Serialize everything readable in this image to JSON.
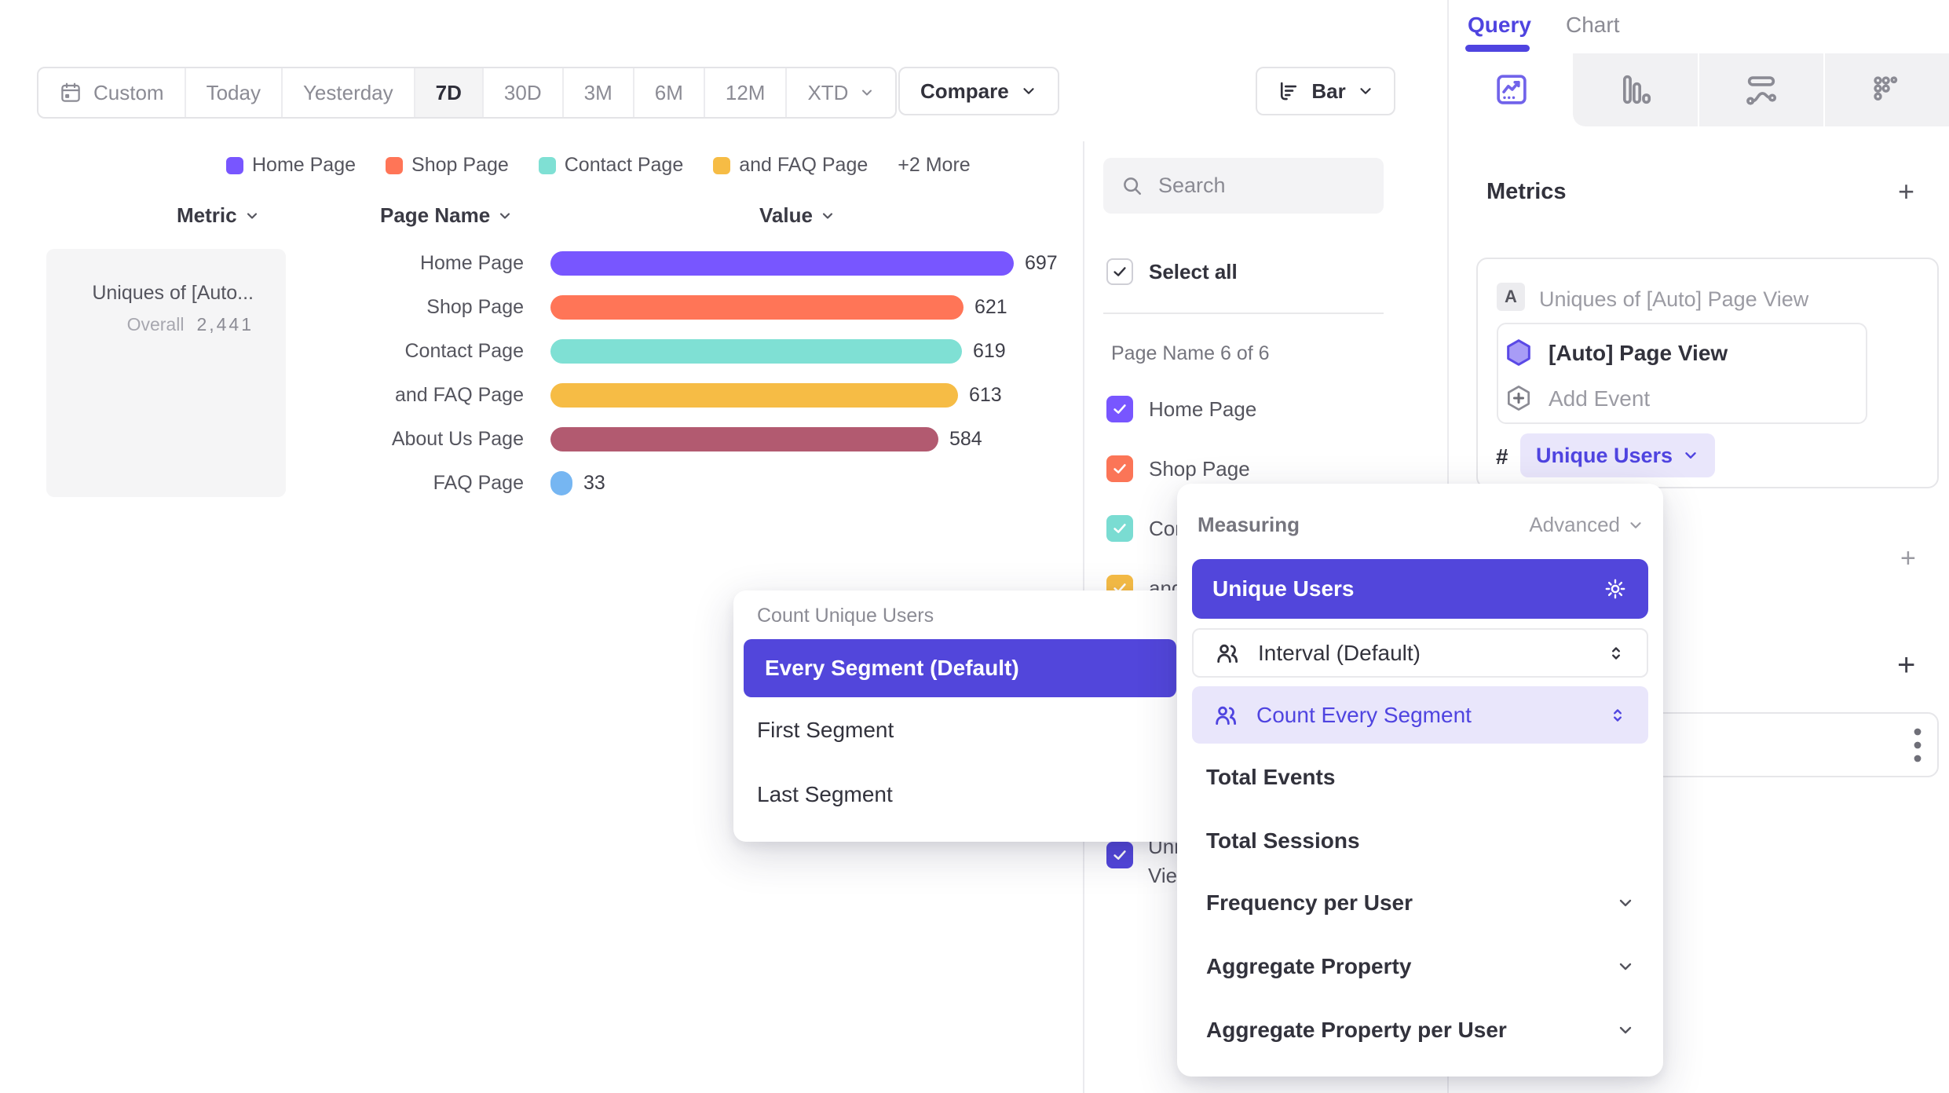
{
  "toolbar": {
    "date_ranges": [
      {
        "label": "Custom",
        "active": false
      },
      {
        "label": "Today",
        "active": false
      },
      {
        "label": "Yesterday",
        "active": false
      },
      {
        "label": "7D",
        "active": true
      },
      {
        "label": "30D",
        "active": false
      },
      {
        "label": "3M",
        "active": false
      },
      {
        "label": "6M",
        "active": false
      },
      {
        "label": "12M",
        "active": false
      },
      {
        "label": "XTD",
        "active": false
      }
    ],
    "compare_label": "Compare",
    "chart_type_label": "Bar"
  },
  "legend": {
    "items": [
      {
        "label": "Home Page",
        "color": "#7856FF"
      },
      {
        "label": "Shop Page",
        "color": "#FF7557"
      },
      {
        "label": "Contact Page",
        "color": "#7FE0D4"
      },
      {
        "label": "and FAQ Page",
        "color": "#F6BC45"
      }
    ],
    "more_label": "+2 More"
  },
  "table": {
    "metric_header": "Metric",
    "page_name_header": "Page Name",
    "value_header": "Value",
    "metric_card": {
      "title": "Uniques of [Auto...",
      "overall_label": "Overall",
      "overall_value": "2,441"
    },
    "rows": [
      {
        "label": "Home Page",
        "value": 697,
        "color": "#7856FF"
      },
      {
        "label": "Shop Page",
        "value": 621,
        "color": "#FF7557"
      },
      {
        "label": "Contact Page",
        "value": 619,
        "color": "#7FE0D4"
      },
      {
        "label": "and FAQ Page",
        "value": 613,
        "color": "#F6BC45"
      },
      {
        "label": "About Us Page",
        "value": 584,
        "color": "#B25A70"
      },
      {
        "label": "FAQ Page",
        "value": 33,
        "color": "#76B6F2"
      }
    ]
  },
  "chart_data": {
    "type": "bar",
    "orientation": "horizontal",
    "categories": [
      "Home Page",
      "Shop Page",
      "Contact Page",
      "and FAQ Page",
      "About Us Page",
      "FAQ Page"
    ],
    "values": [
      697,
      621,
      619,
      613,
      584,
      33
    ],
    "title": "Uniques of [Auto] Page View",
    "overall": 2441
  },
  "filter_panel": {
    "search_placeholder": "Search",
    "select_all_label": "Select all",
    "group_label": "Page Name 6 of 6",
    "items": [
      {
        "label": "Home Page",
        "color": "#7856FF",
        "checked": true
      },
      {
        "label": "Shop Page",
        "color": "#FB7557",
        "checked": true
      },
      {
        "label": "Contact Page",
        "color": "#7ADCD2",
        "checked": true
      },
      {
        "label": "and FAQ Page",
        "color": "#F6BC45",
        "checked": true
      },
      {
        "label": "About Us Page",
        "color": "#B25A70",
        "checked": true
      },
      {
        "label": "FAQ Page",
        "color": "#76B6F2",
        "checked": true
      }
    ],
    "extra_item": {
      "line1": "Uniques of [Auto] Page",
      "line2": "View",
      "color": "#5246DB",
      "checked": true
    }
  },
  "query_panel": {
    "tabs": [
      {
        "label": "Query",
        "active": true
      },
      {
        "label": "Chart",
        "active": false
      }
    ],
    "metrics_title": "Metrics",
    "add_metric_label": "+",
    "metric_card": {
      "badge": "A",
      "title": "Uniques of [Auto] Page View",
      "event_label": "[Auto] Page View",
      "add_event_label": "Add Event",
      "agg_prefix": "#",
      "agg_label": "Unique Users"
    },
    "add_filter_label": "+",
    "add_breakdown_label": "+"
  },
  "segment_popup": {
    "title": "Count Unique Users",
    "options": [
      {
        "label": "Every Segment (Default)",
        "selected": true
      },
      {
        "label": "First Segment",
        "selected": false
      },
      {
        "label": "Last Segment",
        "selected": false
      }
    ]
  },
  "measuring_popup": {
    "title": "Measuring",
    "advanced_label": "Advanced",
    "selected_option": "Unique Users",
    "interval_label": "Interval (Default)",
    "count_segment_label": "Count Every Segment",
    "options": [
      "Total Events",
      "Total Sessions"
    ],
    "expandable_options": [
      "Frequency per User",
      "Aggregate Property",
      "Aggregate Property per User"
    ]
  },
  "colors": {
    "accent": "#5246DB",
    "accent_text": "#4F44E0",
    "accent_light": "#E9E6FB",
    "gray_text": "#8B8B94",
    "dark_text": "#32323C"
  }
}
